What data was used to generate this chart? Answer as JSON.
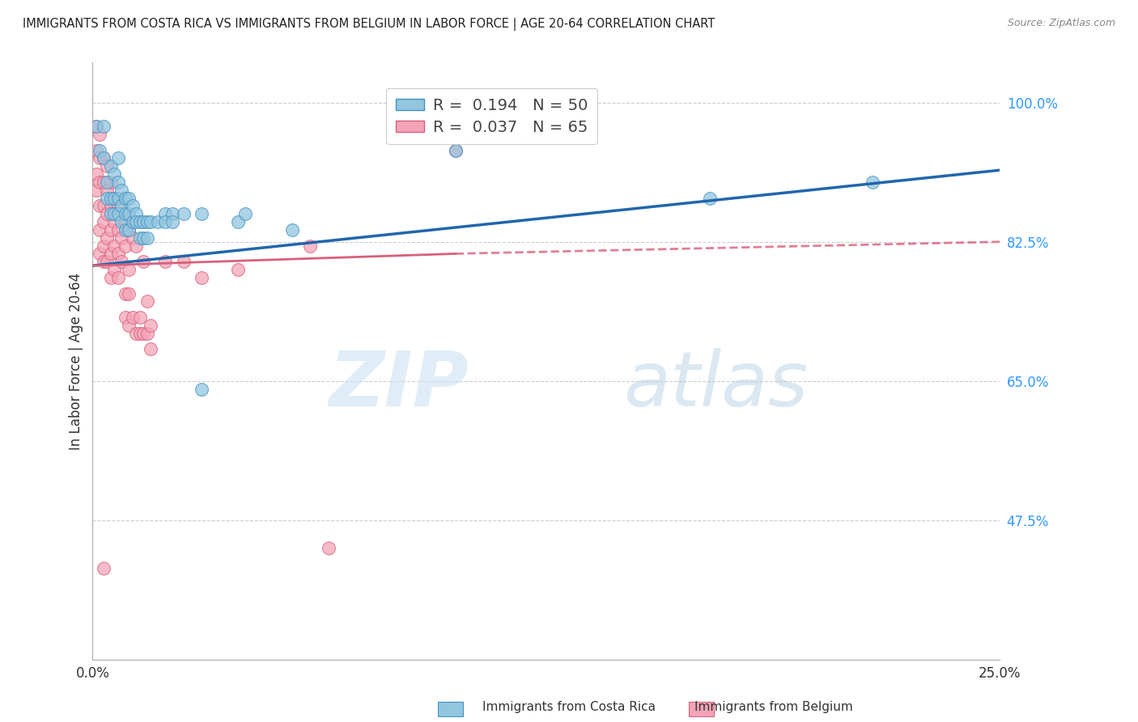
{
  "title": "IMMIGRANTS FROM COSTA RICA VS IMMIGRANTS FROM BELGIUM IN LABOR FORCE | AGE 20-64 CORRELATION CHART",
  "source": "Source: ZipAtlas.com",
  "ylabel": "In Labor Force | Age 20-64",
  "xlim": [
    0.0,
    0.25
  ],
  "ylim": [
    0.3,
    1.05
  ],
  "yticks": [
    0.475,
    0.65,
    0.825,
    1.0
  ],
  "ytick_labels": [
    "47.5%",
    "65.0%",
    "82.5%",
    "100.0%"
  ],
  "xticks": [
    0.0,
    0.05,
    0.1,
    0.15,
    0.2,
    0.25
  ],
  "xtick_labels": [
    "0.0%",
    "",
    "",
    "",
    "",
    "25.0%"
  ],
  "blue_R": "0.194",
  "blue_N": "50",
  "pink_R": "0.037",
  "pink_N": "65",
  "blue_color": "#92c5de",
  "pink_color": "#f4a4b8",
  "blue_edge_color": "#4393c3",
  "pink_edge_color": "#d6617b",
  "blue_line_color": "#2166ac",
  "pink_line_color": "#d6617b",
  "blue_line": [
    [
      0.0,
      0.795
    ],
    [
      0.25,
      0.915
    ]
  ],
  "pink_line_solid": [
    [
      0.0,
      0.795
    ],
    [
      0.1,
      0.81
    ]
  ],
  "pink_line_dash": [
    [
      0.1,
      0.81
    ],
    [
      0.25,
      0.825
    ]
  ],
  "blue_scatter": [
    [
      0.001,
      0.97
    ],
    [
      0.002,
      0.94
    ],
    [
      0.003,
      0.97
    ],
    [
      0.003,
      0.93
    ],
    [
      0.004,
      0.9
    ],
    [
      0.004,
      0.88
    ],
    [
      0.005,
      0.92
    ],
    [
      0.005,
      0.88
    ],
    [
      0.005,
      0.86
    ],
    [
      0.006,
      0.91
    ],
    [
      0.006,
      0.88
    ],
    [
      0.006,
      0.86
    ],
    [
      0.007,
      0.93
    ],
    [
      0.007,
      0.9
    ],
    [
      0.007,
      0.88
    ],
    [
      0.007,
      0.86
    ],
    [
      0.008,
      0.89
    ],
    [
      0.008,
      0.87
    ],
    [
      0.008,
      0.85
    ],
    [
      0.009,
      0.88
    ],
    [
      0.009,
      0.86
    ],
    [
      0.009,
      0.84
    ],
    [
      0.01,
      0.88
    ],
    [
      0.01,
      0.86
    ],
    [
      0.01,
      0.84
    ],
    [
      0.011,
      0.87
    ],
    [
      0.011,
      0.85
    ],
    [
      0.012,
      0.86
    ],
    [
      0.012,
      0.85
    ],
    [
      0.013,
      0.85
    ],
    [
      0.013,
      0.83
    ],
    [
      0.014,
      0.85
    ],
    [
      0.014,
      0.83
    ],
    [
      0.015,
      0.85
    ],
    [
      0.015,
      0.83
    ],
    [
      0.016,
      0.85
    ],
    [
      0.018,
      0.85
    ],
    [
      0.02,
      0.86
    ],
    [
      0.02,
      0.85
    ],
    [
      0.022,
      0.86
    ],
    [
      0.022,
      0.85
    ],
    [
      0.025,
      0.86
    ],
    [
      0.03,
      0.86
    ],
    [
      0.03,
      0.64
    ],
    [
      0.04,
      0.85
    ],
    [
      0.042,
      0.86
    ],
    [
      0.055,
      0.84
    ],
    [
      0.1,
      0.94
    ],
    [
      0.17,
      0.88
    ],
    [
      0.215,
      0.9
    ]
  ],
  "pink_scatter": [
    [
      0.001,
      0.97
    ],
    [
      0.001,
      0.94
    ],
    [
      0.001,
      0.91
    ],
    [
      0.001,
      0.89
    ],
    [
      0.002,
      0.96
    ],
    [
      0.002,
      0.93
    ],
    [
      0.002,
      0.9
    ],
    [
      0.002,
      0.87
    ],
    [
      0.002,
      0.84
    ],
    [
      0.002,
      0.81
    ],
    [
      0.003,
      0.93
    ],
    [
      0.003,
      0.9
    ],
    [
      0.003,
      0.87
    ],
    [
      0.003,
      0.85
    ],
    [
      0.003,
      0.82
    ],
    [
      0.003,
      0.8
    ],
    [
      0.004,
      0.92
    ],
    [
      0.004,
      0.89
    ],
    [
      0.004,
      0.86
    ],
    [
      0.004,
      0.83
    ],
    [
      0.004,
      0.8
    ],
    [
      0.005,
      0.9
    ],
    [
      0.005,
      0.87
    ],
    [
      0.005,
      0.84
    ],
    [
      0.005,
      0.81
    ],
    [
      0.005,
      0.78
    ],
    [
      0.006,
      0.88
    ],
    [
      0.006,
      0.85
    ],
    [
      0.006,
      0.82
    ],
    [
      0.006,
      0.79
    ],
    [
      0.007,
      0.87
    ],
    [
      0.007,
      0.84
    ],
    [
      0.007,
      0.81
    ],
    [
      0.007,
      0.78
    ],
    [
      0.008,
      0.86
    ],
    [
      0.008,
      0.83
    ],
    [
      0.008,
      0.8
    ],
    [
      0.009,
      0.85
    ],
    [
      0.009,
      0.82
    ],
    [
      0.009,
      0.76
    ],
    [
      0.009,
      0.73
    ],
    [
      0.01,
      0.84
    ],
    [
      0.01,
      0.79
    ],
    [
      0.01,
      0.76
    ],
    [
      0.01,
      0.72
    ],
    [
      0.011,
      0.83
    ],
    [
      0.011,
      0.73
    ],
    [
      0.012,
      0.82
    ],
    [
      0.012,
      0.71
    ],
    [
      0.013,
      0.73
    ],
    [
      0.013,
      0.71
    ],
    [
      0.014,
      0.8
    ],
    [
      0.014,
      0.71
    ],
    [
      0.015,
      0.75
    ],
    [
      0.015,
      0.71
    ],
    [
      0.016,
      0.72
    ],
    [
      0.016,
      0.69
    ],
    [
      0.02,
      0.8
    ],
    [
      0.025,
      0.8
    ],
    [
      0.03,
      0.78
    ],
    [
      0.04,
      0.79
    ],
    [
      0.06,
      0.82
    ],
    [
      0.065,
      0.44
    ],
    [
      0.003,
      0.415
    ],
    [
      0.1,
      0.94
    ]
  ],
  "watermark_zip": "ZIP",
  "watermark_atlas": "atlas",
  "background_color": "#ffffff",
  "grid_color": "#cccccc"
}
